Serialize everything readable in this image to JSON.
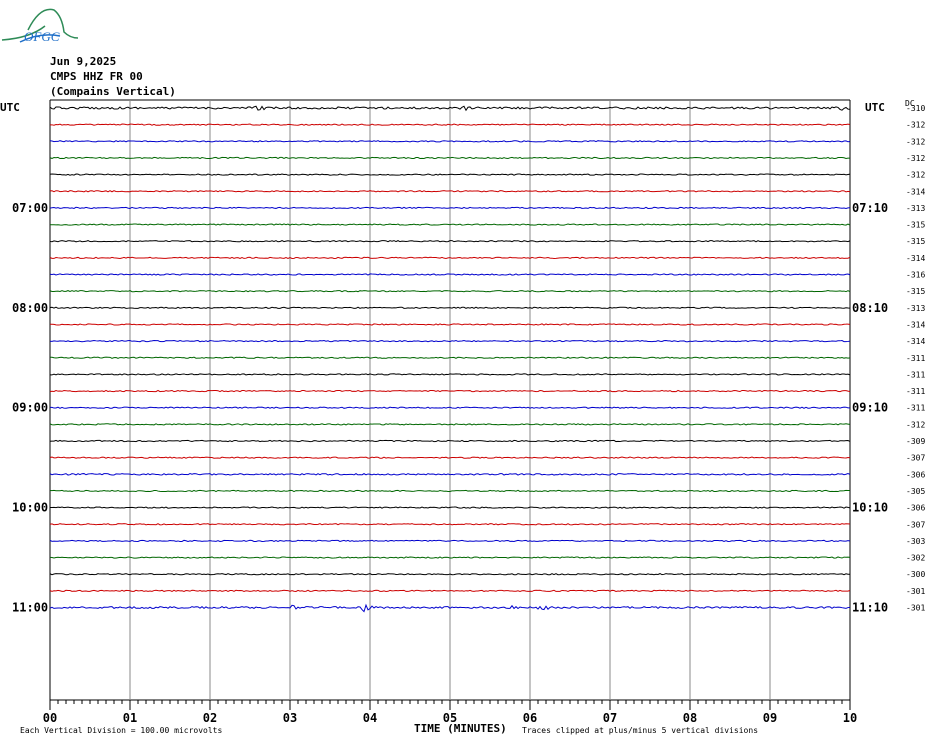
{
  "header": {
    "logo_text": "OFGC",
    "date": "Jun 9,2025",
    "station": "CMPS HHZ FR 00",
    "location": "(Compains Vertical)"
  },
  "left_axis": {
    "label": "UTC",
    "hours": [
      {
        "label": "07:00",
        "row": 6
      },
      {
        "label": "08:00",
        "row": 12
      },
      {
        "label": "09:00",
        "row": 18
      },
      {
        "label": "10:00",
        "row": 24
      },
      {
        "label": "11:00",
        "row": 30
      }
    ]
  },
  "right_axis": {
    "label": "UTC",
    "dc_label": "DC",
    "times": [
      {
        "label": "07:10",
        "row": 6
      },
      {
        "label": "08:10",
        "row": 12
      },
      {
        "label": "09:10",
        "row": 18
      },
      {
        "label": "10:10",
        "row": 24
      },
      {
        "label": "11:10",
        "row": 30
      }
    ]
  },
  "footer": {
    "scale_note": "Each Vertical Division =  100.00 microvolts",
    "xlabel": "TIME (MINUTES)",
    "clip_note": "Traces clipped at plus/minus 5 vertical divisions"
  },
  "colors": {
    "trace_cycle": [
      "#000000",
      "#cc0000",
      "#0000cc",
      "#006600"
    ],
    "grid": "#888888"
  },
  "chart_data": {
    "type": "line",
    "x_ticks": [
      "00",
      "01",
      "02",
      "03",
      "04",
      "05",
      "06",
      "07",
      "08",
      "09",
      "10"
    ],
    "xlim": [
      0,
      10
    ],
    "row_minutes": 10,
    "rows": 31,
    "dc_offsets": [
      -310,
      -312,
      -312,
      -312,
      -312,
      -314,
      -313,
      -315,
      -315,
      -314,
      -316,
      -315,
      -313,
      -314,
      -314,
      -311,
      -311,
      -311,
      -311,
      -312,
      -309,
      -307,
      -306,
      -305,
      -306,
      -307,
      -303,
      -302,
      -300,
      -301,
      -301
    ],
    "noise_amplitude_divisions": [
      0.35,
      0.2,
      0.2,
      0.2,
      0.2,
      0.2,
      0.2,
      0.2,
      0.2,
      0.2,
      0.2,
      0.2,
      0.2,
      0.2,
      0.2,
      0.2,
      0.2,
      0.2,
      0.2,
      0.2,
      0.2,
      0.2,
      0.25,
      0.2,
      0.2,
      0.2,
      0.2,
      0.2,
      0.2,
      0.2,
      0.3
    ],
    "events": [
      {
        "row": 0,
        "minute": 2.6,
        "amplitude_divisions": 0.5
      },
      {
        "row": 0,
        "minute": 5.2,
        "amplitude_divisions": 0.5
      },
      {
        "row": 0,
        "minute": 9.9,
        "amplitude_divisions": 0.5
      },
      {
        "row": 30,
        "minute": 3.05,
        "amplitude_divisions": 0.6
      },
      {
        "row": 30,
        "minute": 3.95,
        "amplitude_divisions": 0.7
      },
      {
        "row": 30,
        "minute": 5.8,
        "amplitude_divisions": 0.6
      },
      {
        "row": 30,
        "minute": 6.15,
        "amplitude_divisions": 0.6
      }
    ],
    "scale_microvolts_per_division": 100.0,
    "clip_divisions": 5
  }
}
